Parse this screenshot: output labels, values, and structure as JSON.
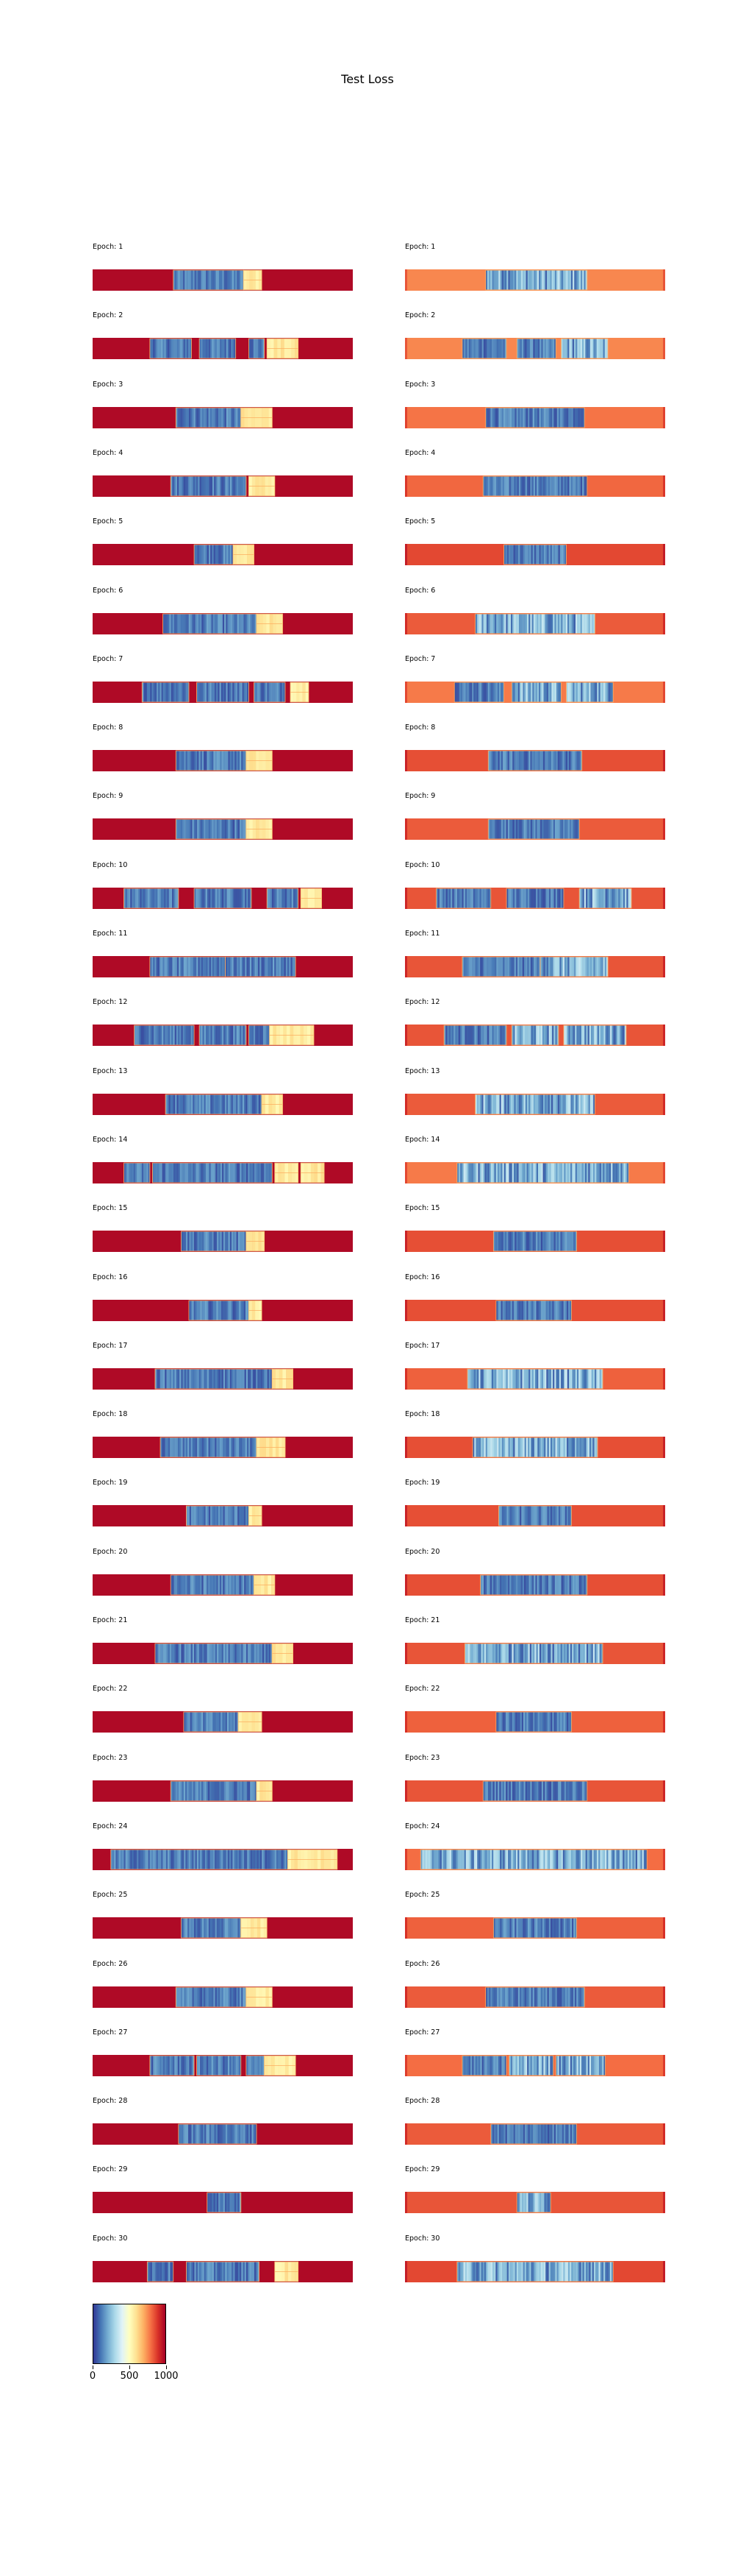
{
  "chart_data": {
    "type": "heatmap",
    "title": "Test Loss",
    "colormap": "RdYlBu_r",
    "color_range": [
      0,
      1000
    ],
    "colorbar_ticks": [
      "0",
      "500",
      "1000"
    ],
    "columns": [
      "left",
      "right"
    ],
    "epochs": [
      {
        "label": "Epoch: 1",
        "left": [
          [
            0.31,
            0.58,
            "b"
          ],
          [
            0.58,
            0.65,
            "y"
          ]
        ],
        "right": [
          [
            0.31,
            0.7,
            "c"
          ]
        ],
        "left_bg": 980,
        "right_bg": 760
      },
      {
        "label": "Epoch: 2",
        "left": [
          [
            0.22,
            0.38,
            "b"
          ],
          [
            0.41,
            0.55,
            "b"
          ],
          [
            0.6,
            0.66,
            "b"
          ],
          [
            0.67,
            0.79,
            "y"
          ]
        ],
        "right": [
          [
            0.22,
            0.39,
            "b"
          ],
          [
            0.43,
            0.58,
            "b"
          ],
          [
            0.6,
            0.78,
            "c"
          ]
        ],
        "left_bg": 980,
        "right_bg": 760
      },
      {
        "label": "Epoch: 3",
        "left": [
          [
            0.32,
            0.57,
            "b"
          ],
          [
            0.57,
            0.69,
            "y"
          ]
        ],
        "right": [
          [
            0.31,
            0.69,
            "b"
          ]
        ],
        "left_bg": 980,
        "right_bg": 790
      },
      {
        "label": "Epoch: 4",
        "left": [
          [
            0.3,
            0.59,
            "b"
          ],
          [
            0.6,
            0.7,
            "y"
          ]
        ],
        "right": [
          [
            0.3,
            0.7,
            "b"
          ]
        ],
        "left_bg": 980,
        "right_bg": 810
      },
      {
        "label": "Epoch: 5",
        "left": [
          [
            0.39,
            0.54,
            "b"
          ],
          [
            0.54,
            0.62,
            "y"
          ]
        ],
        "right": [
          [
            0.38,
            0.62,
            "b"
          ]
        ],
        "left_bg": 980,
        "right_bg": 860
      },
      {
        "label": "Epoch: 6",
        "left": [
          [
            0.27,
            0.63,
            "b"
          ],
          [
            0.63,
            0.73,
            "y"
          ]
        ],
        "right": [
          [
            0.27,
            0.73,
            "c"
          ]
        ],
        "left_bg": 980,
        "right_bg": 830
      },
      {
        "label": "Epoch: 7",
        "left": [
          [
            0.19,
            0.37,
            "b"
          ],
          [
            0.4,
            0.6,
            "b"
          ],
          [
            0.62,
            0.74,
            "b"
          ],
          [
            0.76,
            0.83,
            "y"
          ]
        ],
        "right": [
          [
            0.19,
            0.38,
            "b"
          ],
          [
            0.41,
            0.6,
            "c"
          ],
          [
            0.62,
            0.8,
            "c"
          ]
        ],
        "left_bg": 980,
        "right_bg": 780
      },
      {
        "label": "Epoch: 8",
        "left": [
          [
            0.32,
            0.59,
            "b"
          ],
          [
            0.59,
            0.69,
            "y"
          ]
        ],
        "right": [
          [
            0.32,
            0.68,
            "b"
          ]
        ],
        "left_bg": 980,
        "right_bg": 850
      },
      {
        "label": "Epoch: 9",
        "left": [
          [
            0.32,
            0.59,
            "b"
          ],
          [
            0.59,
            0.69,
            "y"
          ]
        ],
        "right": [
          [
            0.32,
            0.67,
            "b"
          ]
        ],
        "left_bg": 980,
        "right_bg": 830
      },
      {
        "label": "Epoch: 10",
        "left": [
          [
            0.12,
            0.33,
            "b"
          ],
          [
            0.39,
            0.61,
            "b"
          ],
          [
            0.67,
            0.79,
            "b"
          ],
          [
            0.8,
            0.88,
            "y"
          ]
        ],
        "right": [
          [
            0.12,
            0.33,
            "b"
          ],
          [
            0.39,
            0.61,
            "b"
          ],
          [
            0.67,
            0.87,
            "c"
          ]
        ],
        "left_bg": 980,
        "right_bg": 840
      },
      {
        "label": "Epoch: 11",
        "left": [
          [
            0.22,
            0.51,
            "b"
          ],
          [
            0.51,
            0.78,
            "b"
          ]
        ],
        "right": [
          [
            0.22,
            0.52,
            "b"
          ],
          [
            0.52,
            0.78,
            "c"
          ]
        ],
        "left_bg": 980,
        "right_bg": 840
      },
      {
        "label": "Epoch: 12",
        "left": [
          [
            0.16,
            0.39,
            "b"
          ],
          [
            0.41,
            0.59,
            "b"
          ],
          [
            0.6,
            0.68,
            "b"
          ],
          [
            0.68,
            0.85,
            "y"
          ]
        ],
        "right": [
          [
            0.15,
            0.39,
            "b"
          ],
          [
            0.41,
            0.59,
            "c"
          ],
          [
            0.61,
            0.85,
            "c"
          ]
        ],
        "left_bg": 980,
        "right_bg": 840
      },
      {
        "label": "Epoch: 13",
        "left": [
          [
            0.28,
            0.65,
            "b"
          ],
          [
            0.65,
            0.73,
            "y"
          ]
        ],
        "right": [
          [
            0.27,
            0.73,
            "c"
          ]
        ],
        "left_bg": 980,
        "right_bg": 830
      },
      {
        "label": "Epoch: 14",
        "left": [
          [
            0.12,
            0.22,
            "b"
          ],
          [
            0.23,
            0.69,
            "b"
          ],
          [
            0.7,
            0.79,
            "y"
          ],
          [
            0.8,
            0.89,
            "y"
          ]
        ],
        "right": [
          [
            0.2,
            0.86,
            "c"
          ]
        ],
        "left_bg": 980,
        "right_bg": 780
      },
      {
        "label": "Epoch: 15",
        "left": [
          [
            0.34,
            0.59,
            "b"
          ],
          [
            0.59,
            0.66,
            "y"
          ]
        ],
        "right": [
          [
            0.34,
            0.66,
            "b"
          ]
        ],
        "left_bg": 980,
        "right_bg": 850
      },
      {
        "label": "Epoch: 16",
        "left": [
          [
            0.37,
            0.6,
            "b"
          ],
          [
            0.6,
            0.65,
            "y"
          ]
        ],
        "right": [
          [
            0.35,
            0.64,
            "b"
          ]
        ],
        "left_bg": 980,
        "right_bg": 850
      },
      {
        "label": "Epoch: 17",
        "left": [
          [
            0.24,
            0.69,
            "b"
          ],
          [
            0.69,
            0.77,
            "y"
          ]
        ],
        "right": [
          [
            0.24,
            0.76,
            "c"
          ]
        ],
        "left_bg": 980,
        "right_bg": 820
      },
      {
        "label": "Epoch: 18",
        "left": [
          [
            0.26,
            0.63,
            "b"
          ],
          [
            0.63,
            0.74,
            "y"
          ]
        ],
        "right": [
          [
            0.26,
            0.74,
            "c"
          ]
        ],
        "left_bg": 980,
        "right_bg": 850
      },
      {
        "label": "Epoch: 19",
        "left": [
          [
            0.36,
            0.6,
            "b"
          ],
          [
            0.6,
            0.65,
            "y"
          ]
        ],
        "right": [
          [
            0.36,
            0.64,
            "b"
          ]
        ],
        "left_bg": 980,
        "right_bg": 850
      },
      {
        "label": "Epoch: 20",
        "left": [
          [
            0.3,
            0.62,
            "b"
          ],
          [
            0.62,
            0.7,
            "y"
          ]
        ],
        "right": [
          [
            0.29,
            0.7,
            "b"
          ]
        ],
        "left_bg": 980,
        "right_bg": 850
      },
      {
        "label": "Epoch: 21",
        "left": [
          [
            0.24,
            0.69,
            "b"
          ],
          [
            0.69,
            0.77,
            "y"
          ]
        ],
        "right": [
          [
            0.23,
            0.76,
            "c"
          ]
        ],
        "left_bg": 980,
        "right_bg": 840
      },
      {
        "label": "Epoch: 22",
        "left": [
          [
            0.35,
            0.56,
            "b"
          ],
          [
            0.56,
            0.65,
            "y"
          ]
        ],
        "right": [
          [
            0.35,
            0.64,
            "b"
          ]
        ],
        "left_bg": 980,
        "right_bg": 820
      },
      {
        "label": "Epoch: 23",
        "left": [
          [
            0.3,
            0.63,
            "b"
          ],
          [
            0.63,
            0.69,
            "y"
          ]
        ],
        "right": [
          [
            0.3,
            0.7,
            "b"
          ]
        ],
        "left_bg": 980,
        "right_bg": 840
      },
      {
        "label": "Epoch: 24",
        "left": [
          [
            0.07,
            0.75,
            "b"
          ],
          [
            0.75,
            0.94,
            "y"
          ]
        ],
        "right": [
          [
            0.06,
            0.93,
            "c"
          ]
        ],
        "left_bg": 980,
        "right_bg": 800
      },
      {
        "label": "Epoch: 25",
        "left": [
          [
            0.34,
            0.57,
            "b"
          ],
          [
            0.57,
            0.67,
            "y"
          ]
        ],
        "right": [
          [
            0.34,
            0.66,
            "b"
          ]
        ],
        "left_bg": 980,
        "right_bg": 820
      },
      {
        "label": "Epoch: 26",
        "left": [
          [
            0.32,
            0.59,
            "b"
          ],
          [
            0.59,
            0.69,
            "y"
          ]
        ],
        "right": [
          [
            0.31,
            0.69,
            "b"
          ]
        ],
        "left_bg": 980,
        "right_bg": 830
      },
      {
        "label": "Epoch: 27",
        "left": [
          [
            0.22,
            0.39,
            "b"
          ],
          [
            0.4,
            0.57,
            "b"
          ],
          [
            0.59,
            0.66,
            "b"
          ],
          [
            0.66,
            0.78,
            "y"
          ]
        ],
        "right": [
          [
            0.22,
            0.39,
            "b"
          ],
          [
            0.4,
            0.57,
            "c"
          ],
          [
            0.58,
            0.77,
            "c"
          ]
        ],
        "left_bg": 980,
        "right_bg": 800
      },
      {
        "label": "Epoch: 28",
        "left": [
          [
            0.33,
            0.63,
            "b"
          ]
        ],
        "right": [
          [
            0.33,
            0.66,
            "b"
          ]
        ],
        "left_bg": 980,
        "right_bg": 830
      },
      {
        "label": "Epoch: 29",
        "left": [
          [
            0.44,
            0.57,
            "b"
          ]
        ],
        "right": [
          [
            0.43,
            0.56,
            "c"
          ]
        ],
        "left_bg": 980,
        "right_bg": 840
      },
      {
        "label": "Epoch: 30",
        "left": [
          [
            0.21,
            0.31,
            "b"
          ],
          [
            0.36,
            0.64,
            "b"
          ],
          [
            0.7,
            0.79,
            "y"
          ]
        ],
        "right": [
          [
            0.2,
            0.8,
            "c"
          ]
        ],
        "left_bg": 980,
        "right_bg": 860
      }
    ]
  }
}
